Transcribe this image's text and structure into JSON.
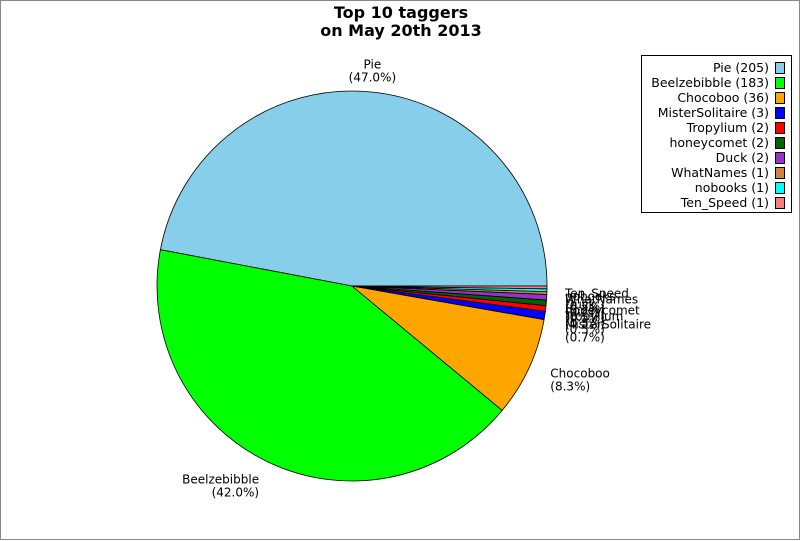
{
  "chart_data": {
    "type": "pie",
    "title": [
      "Top 10 taggers",
      "on May 20th 2013"
    ],
    "slices": [
      {
        "label": "Pie",
        "value": 205,
        "percent": "(47.0%)",
        "legend": "Pie (205)",
        "color": "#87ceeb"
      },
      {
        "label": "Beelzebibble",
        "value": 183,
        "percent": "(42.0%)",
        "legend": "Beelzebibble (183)",
        "color": "#00ff00"
      },
      {
        "label": "Chocoboo",
        "value": 36,
        "percent": "(8.3%)",
        "legend": "Chocoboo (36)",
        "color": "#ffa500"
      },
      {
        "label": "MisterSolitaire",
        "value": 3,
        "percent": "(0.7%)",
        "legend": "MisterSolitaire (3)",
        "color": "#0000ff"
      },
      {
        "label": "Tropylium",
        "value": 2,
        "percent": "(0.5%)",
        "legend": "Tropylium (2)",
        "color": "#ff0000"
      },
      {
        "label": "honeycomet",
        "value": 2,
        "percent": "(0.5%)",
        "legend": "honeycomet (2)",
        "color": "#006400"
      },
      {
        "label": "Duck",
        "value": 2,
        "percent": "(0.5%)",
        "legend": "Duck (2)",
        "color": "#9932cc"
      },
      {
        "label": "WhatNames",
        "value": 1,
        "percent": "(0.2%)",
        "legend": "WhatNames (1)",
        "color": "#cd853f"
      },
      {
        "label": "nobooks",
        "value": 1,
        "percent": "(0.2%)",
        "legend": "nobooks (1)",
        "color": "#00ffff"
      },
      {
        "label": "Ten_Speed",
        "value": 1,
        "percent": "(0.2%)",
        "legend": "Ten_Speed (1)",
        "color": "#f08080"
      }
    ],
    "legend_position": "top-right"
  }
}
